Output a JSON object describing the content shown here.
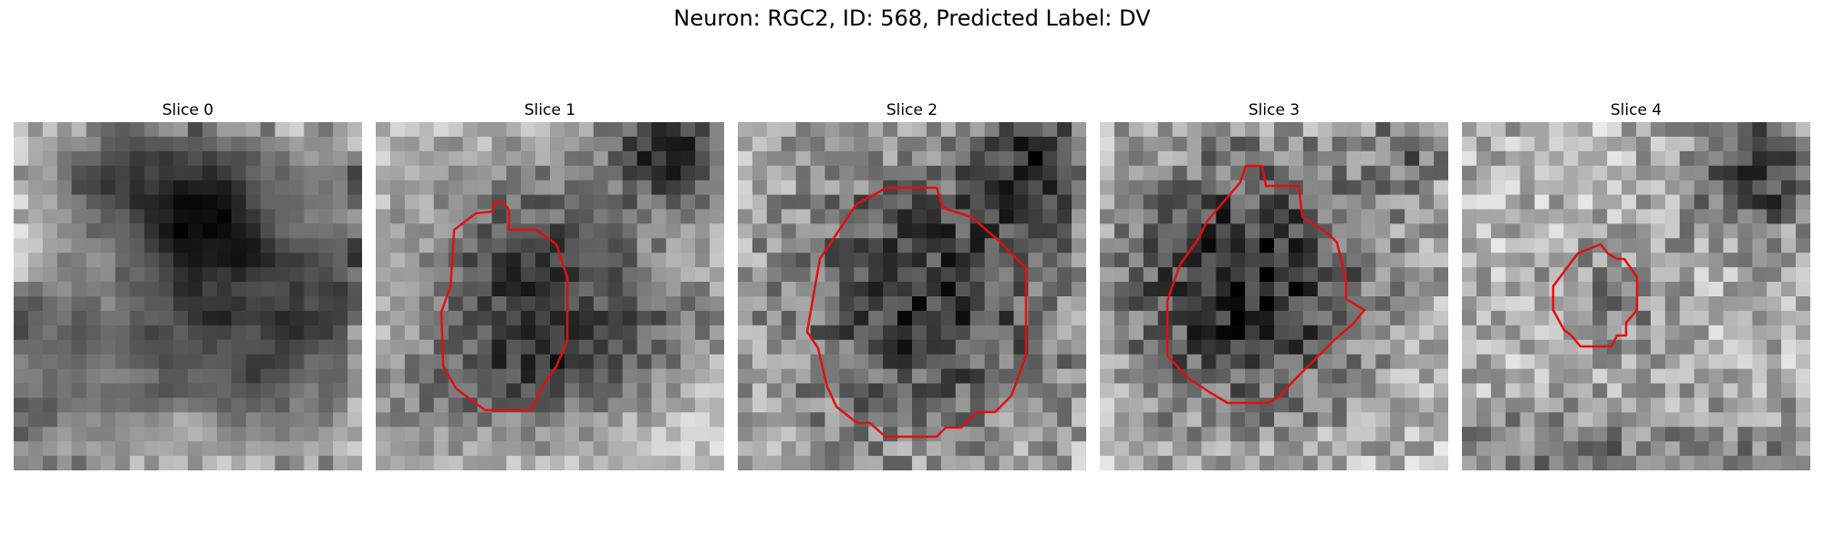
{
  "figure": {
    "title": "Neuron: RGC2, ID: 568, Predicted Label: DV",
    "outline_color": "#e01010"
  },
  "slices": [
    {
      "title": "Slice 0"
    },
    {
      "title": "Slice 1"
    },
    {
      "title": "Slice 2"
    },
    {
      "title": "Slice 3"
    },
    {
      "title": "Slice 4"
    }
  ]
}
